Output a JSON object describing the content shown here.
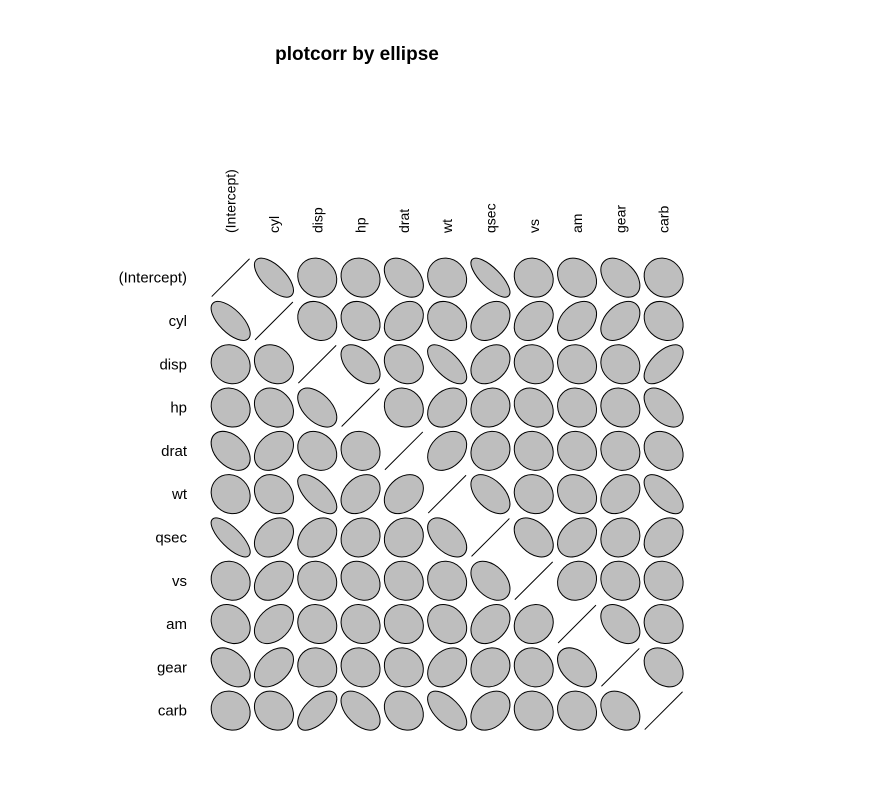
{
  "title": "plotcorr by ellipse",
  "chart_data": {
    "type": "heatmap",
    "title": "plotcorr by ellipse",
    "variables": [
      "(Intercept)",
      "cyl",
      "disp",
      "hp",
      "drat",
      "wt",
      "qsec",
      "vs",
      "am",
      "gear",
      "carb"
    ],
    "matrix": [
      [
        1.0,
        -0.65,
        -0.1,
        -0.1,
        -0.4,
        -0.1,
        -0.75,
        -0.1,
        -0.2,
        -0.4,
        -0.1
      ],
      [
        -0.65,
        1.0,
        -0.2,
        -0.2,
        0.3,
        -0.2,
        0.3,
        0.3,
        0.35,
        0.4,
        -0.2
      ],
      [
        -0.1,
        -0.2,
        1.0,
        -0.5,
        -0.2,
        -0.65,
        0.3,
        -0.1,
        -0.1,
        -0.1,
        0.6
      ],
      [
        -0.1,
        -0.2,
        -0.5,
        1.0,
        -0.1,
        0.3,
        0.1,
        -0.2,
        -0.1,
        -0.1,
        -0.5
      ],
      [
        -0.4,
        0.3,
        -0.2,
        -0.1,
        1.0,
        0.3,
        0.1,
        -0.1,
        -0.1,
        -0.1,
        -0.2
      ],
      [
        -0.1,
        -0.2,
        -0.65,
        0.3,
        0.3,
        1.0,
        -0.5,
        -0.1,
        -0.2,
        0.3,
        -0.6
      ],
      [
        -0.75,
        0.3,
        0.3,
        0.1,
        0.1,
        -0.5,
        1.0,
        -0.4,
        0.3,
        0.1,
        0.3
      ],
      [
        -0.1,
        0.3,
        -0.1,
        -0.2,
        -0.1,
        -0.1,
        -0.4,
        1.0,
        0.1,
        -0.1,
        -0.1
      ],
      [
        -0.2,
        0.35,
        -0.1,
        -0.1,
        -0.1,
        -0.2,
        0.3,
        0.1,
        1.0,
        -0.4,
        -0.1
      ],
      [
        -0.4,
        0.4,
        -0.1,
        -0.1,
        -0.1,
        0.3,
        0.1,
        -0.1,
        -0.4,
        1.0,
        -0.3
      ],
      [
        -0.1,
        -0.2,
        0.6,
        -0.5,
        -0.2,
        -0.6,
        0.3,
        -0.1,
        -0.1,
        -0.3,
        1.0
      ]
    ],
    "colors": {
      "fill": "#bebebe",
      "stroke": "#000000"
    }
  }
}
